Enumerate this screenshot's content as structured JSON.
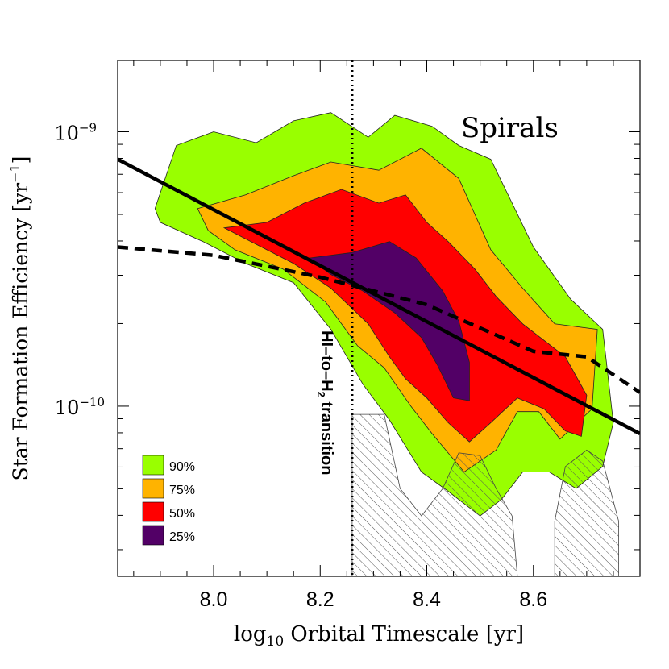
{
  "chart_data": {
    "type": "contour",
    "panel_label": "Spirals",
    "xlabel": "log10 Orbital Timescale [yr]",
    "xlabel_parts": {
      "pre": "log",
      "sub": "10",
      "post": " Orbital Timescale [yr]"
    },
    "ylabel": "Star Formation Efficiency [yr^-1]",
    "ylabel_parts": {
      "pre": "Star Formation Efficiency [yr",
      "sup": "−1",
      "post": "]"
    },
    "x_range": [
      7.82,
      8.8
    ],
    "y_range_log10": [
      -10.62,
      -8.74
    ],
    "y_scale": "log",
    "x_ticks": [
      {
        "value": 8.0,
        "label": "8.0"
      },
      {
        "value": 8.2,
        "label": "8.2"
      },
      {
        "value": 8.4,
        "label": "8.4"
      },
      {
        "value": 8.6,
        "label": "8.6"
      }
    ],
    "y_ticks": [
      {
        "exp": -9,
        "base": "10",
        "sup": "−9"
      },
      {
        "exp": -10,
        "base": "10",
        "sup": "−10"
      }
    ],
    "vline": {
      "x": 8.26,
      "style": "dotted",
      "label": "HI-to-H2 transition",
      "label_parts": {
        "pre": "HI–to–H",
        "sub": "2",
        "post": " transition"
      }
    },
    "fits": [
      {
        "name": "solid fit",
        "style": "solid",
        "points": [
          [
            7.82,
            -9.1
          ],
          [
            8.8,
            -10.1
          ]
        ]
      },
      {
        "name": "dashed fit",
        "style": "dashed",
        "points": [
          [
            7.82,
            -9.42
          ],
          [
            8.0,
            -9.45
          ],
          [
            8.2,
            -9.53
          ],
          [
            8.4,
            -9.63
          ],
          [
            8.6,
            -9.8
          ],
          [
            8.7,
            -9.82
          ],
          [
            8.8,
            -9.95
          ]
        ]
      }
    ],
    "contours": [
      {
        "level": "90%",
        "color": "#99ff00",
        "points": [
          [
            7.89,
            -9.28
          ],
          [
            7.93,
            -9.05
          ],
          [
            8.0,
            -9.0
          ],
          [
            8.08,
            -9.04
          ],
          [
            8.15,
            -8.96
          ],
          [
            8.22,
            -8.93
          ],
          [
            8.29,
            -9.02
          ],
          [
            8.34,
            -8.94
          ],
          [
            8.41,
            -8.98
          ],
          [
            8.46,
            -9.05
          ],
          [
            8.52,
            -9.1
          ],
          [
            8.6,
            -9.42
          ],
          [
            8.67,
            -9.61
          ],
          [
            8.73,
            -9.72
          ],
          [
            8.75,
            -10.06
          ],
          [
            8.73,
            -10.22
          ],
          [
            8.68,
            -10.3
          ],
          [
            8.63,
            -10.24
          ],
          [
            8.58,
            -10.24
          ],
          [
            8.54,
            -10.34
          ],
          [
            8.5,
            -10.4
          ],
          [
            8.44,
            -10.31
          ],
          [
            8.39,
            -10.24
          ],
          [
            8.33,
            -10.05
          ],
          [
            8.28,
            -9.92
          ],
          [
            8.22,
            -9.72
          ],
          [
            8.15,
            -9.55
          ],
          [
            8.06,
            -9.48
          ],
          [
            7.98,
            -9.4
          ],
          [
            7.9,
            -9.33
          ]
        ]
      },
      {
        "level": "75%",
        "color": "#ffb300",
        "points": [
          [
            7.97,
            -9.28
          ],
          [
            8.06,
            -9.23
          ],
          [
            8.15,
            -9.16
          ],
          [
            8.22,
            -9.11
          ],
          [
            8.31,
            -9.14
          ],
          [
            8.39,
            -9.06
          ],
          [
            8.46,
            -9.17
          ],
          [
            8.52,
            -9.43
          ],
          [
            8.58,
            -9.57
          ],
          [
            8.64,
            -9.7
          ],
          [
            8.72,
            -9.72
          ],
          [
            8.71,
            -10.01
          ],
          [
            8.65,
            -10.12
          ],
          [
            8.61,
            -10.02
          ],
          [
            8.57,
            -10.02
          ],
          [
            8.53,
            -10.16
          ],
          [
            8.47,
            -10.24
          ],
          [
            8.41,
            -10.1
          ],
          [
            8.37,
            -10.0
          ],
          [
            8.32,
            -9.86
          ],
          [
            8.27,
            -9.78
          ],
          [
            8.21,
            -9.62
          ],
          [
            8.13,
            -9.5
          ],
          [
            8.04,
            -9.43
          ],
          [
            7.99,
            -9.36
          ]
        ]
      },
      {
        "level": "50%",
        "color": "#ff0000",
        "points": [
          [
            8.02,
            -9.35
          ],
          [
            8.1,
            -9.33
          ],
          [
            8.17,
            -9.26
          ],
          [
            8.24,
            -9.21
          ],
          [
            8.31,
            -9.26
          ],
          [
            8.36,
            -9.23
          ],
          [
            8.4,
            -9.33
          ],
          [
            8.44,
            -9.4
          ],
          [
            8.49,
            -9.5
          ],
          [
            8.53,
            -9.6
          ],
          [
            8.58,
            -9.7
          ],
          [
            8.66,
            -9.82
          ],
          [
            8.7,
            -9.96
          ],
          [
            8.69,
            -10.11
          ],
          [
            8.66,
            -10.09
          ],
          [
            8.62,
            -10.01
          ],
          [
            8.57,
            -9.97
          ],
          [
            8.52,
            -10.06
          ],
          [
            8.48,
            -10.13
          ],
          [
            8.44,
            -10.06
          ],
          [
            8.4,
            -9.97
          ],
          [
            8.36,
            -9.9
          ],
          [
            8.33,
            -9.82
          ],
          [
            8.29,
            -9.7
          ],
          [
            8.22,
            -9.57
          ],
          [
            8.15,
            -9.48
          ],
          [
            8.08,
            -9.41
          ]
        ]
      },
      {
        "level": "25%",
        "color": "#520066",
        "points": [
          [
            8.18,
            -9.46
          ],
          [
            8.26,
            -9.44
          ],
          [
            8.33,
            -9.4
          ],
          [
            8.38,
            -9.46
          ],
          [
            8.43,
            -9.58
          ],
          [
            8.46,
            -9.69
          ],
          [
            8.48,
            -9.84
          ],
          [
            8.48,
            -9.98
          ],
          [
            8.45,
            -9.97
          ],
          [
            8.42,
            -9.85
          ],
          [
            8.39,
            -9.75
          ],
          [
            8.34,
            -9.66
          ],
          [
            8.28,
            -9.58
          ],
          [
            8.22,
            -9.52
          ]
        ]
      }
    ],
    "hatched_regions": [
      {
        "name": "hatch-region-1",
        "points": [
          [
            8.26,
            -10.03
          ],
          [
            8.32,
            -10.03
          ],
          [
            8.35,
            -10.3
          ],
          [
            8.39,
            -10.4
          ],
          [
            8.43,
            -10.3
          ],
          [
            8.46,
            -10.17
          ],
          [
            8.5,
            -10.18
          ],
          [
            8.53,
            -10.3
          ],
          [
            8.56,
            -10.4
          ],
          [
            8.57,
            -10.62
          ],
          [
            8.26,
            -10.62
          ]
        ]
      },
      {
        "name": "hatch-region-2",
        "points": [
          [
            8.64,
            -10.42
          ],
          [
            8.66,
            -10.22
          ],
          [
            8.7,
            -10.16
          ],
          [
            8.73,
            -10.2
          ],
          [
            8.76,
            -10.42
          ],
          [
            8.76,
            -10.62
          ],
          [
            8.64,
            -10.62
          ]
        ]
      }
    ],
    "legend": {
      "position": "lower-left",
      "entries": [
        {
          "label": "90%",
          "color": "#99ff00"
        },
        {
          "label": "75%",
          "color": "#ffb300"
        },
        {
          "label": "50%",
          "color": "#ff0000"
        },
        {
          "label": "25%",
          "color": "#520066"
        }
      ]
    }
  }
}
